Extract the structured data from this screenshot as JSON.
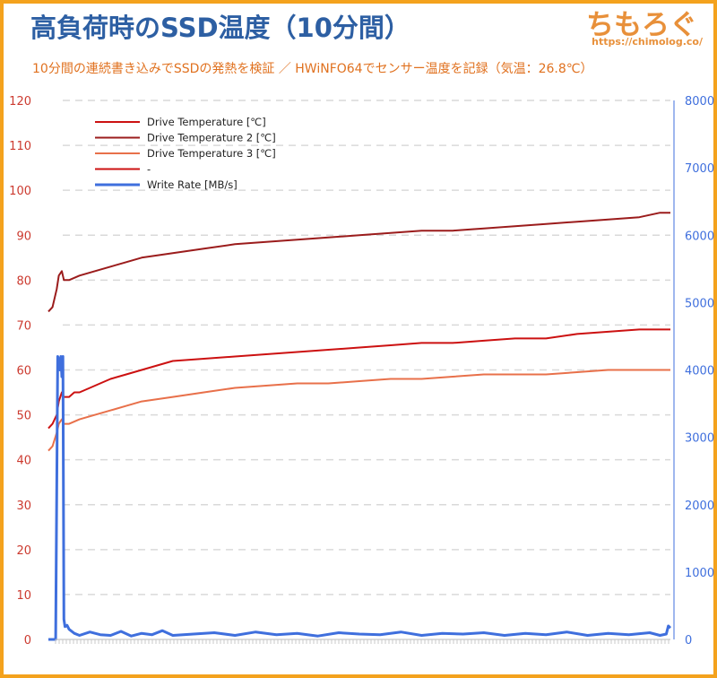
{
  "header": {
    "title": "高負荷時のSSD温度（10分間）",
    "subtitle": "10分間の連続書き込みでSSDの発熱を検証 ／ HWiNFO64でセンサー温度を記録（気温：26.8℃）"
  },
  "branding": {
    "logo_text": "ちもろぐ",
    "url": "https://chimolog.co/"
  },
  "colors": {
    "frame": "#f4a21d",
    "left_axis": "#cc3a2f",
    "right_axis": "#3f6fdd",
    "grid": "#d9d9d9"
  },
  "chart_data": {
    "type": "line",
    "ylim_left": [
      0,
      120
    ],
    "yticks_left": [
      "0",
      "10",
      "20",
      "30",
      "40",
      "50",
      "60",
      "70",
      "80",
      "90",
      "100",
      "110",
      "120"
    ],
    "ylim_right": [
      0,
      8000
    ],
    "yticks_right": [
      "0",
      "1000",
      "2000",
      "3000",
      "4000",
      "5000",
      "6000",
      "7000",
      "8000"
    ],
    "x_range": [
      0,
      600
    ],
    "xlabel": "",
    "grid": "horizontal dashed",
    "legend_position": "top-left",
    "series": [
      {
        "name": "Drive Temperature [℃]",
        "color": "#cc1111",
        "axis": "left",
        "x": [
          0,
          4,
          8,
          10,
          13,
          15,
          20,
          25,
          30,
          40,
          50,
          60,
          75,
          90,
          105,
          120,
          150,
          180,
          210,
          240,
          270,
          300,
          330,
          360,
          390,
          420,
          450,
          480,
          510,
          540,
          570,
          590,
          600
        ],
        "values": [
          47,
          48,
          50,
          53,
          55,
          54,
          54,
          55,
          55,
          56,
          57,
          58,
          59,
          60,
          61,
          62,
          62.5,
          63,
          63.5,
          64,
          64.5,
          65,
          65.5,
          66,
          66,
          66.5,
          67,
          67,
          68,
          68.5,
          69,
          69,
          69
        ]
      },
      {
        "name": "Drive Temperature 2 [℃]",
        "color": "#9b1c1c",
        "axis": "left",
        "x": [
          0,
          4,
          8,
          10,
          13,
          15,
          20,
          30,
          45,
          60,
          75,
          90,
          120,
          150,
          180,
          210,
          240,
          270,
          300,
          330,
          360,
          390,
          420,
          450,
          480,
          510,
          540,
          570,
          590,
          600
        ],
        "values": [
          73,
          74,
          78,
          81,
          82,
          80,
          80,
          81,
          82,
          83,
          84,
          85,
          86,
          87,
          88,
          88.5,
          89,
          89.5,
          90,
          90.5,
          91,
          91,
          91.5,
          92,
          92.5,
          93,
          93.5,
          94,
          95,
          95
        ]
      },
      {
        "name": "Drive Temperature 3 [℃]",
        "color": "#e8704a",
        "axis": "left",
        "x": [
          0,
          4,
          8,
          10,
          13,
          15,
          20,
          30,
          45,
          60,
          75,
          90,
          120,
          150,
          180,
          210,
          240,
          270,
          300,
          330,
          360,
          390,
          420,
          450,
          480,
          510,
          540,
          570,
          590,
          600
        ],
        "values": [
          42,
          43,
          46,
          48,
          49,
          48,
          48,
          49,
          50,
          51,
          52,
          53,
          54,
          55,
          56,
          56.5,
          57,
          57,
          57.5,
          58,
          58,
          58.5,
          59,
          59,
          59,
          59.5,
          60,
          60,
          60,
          60
        ]
      },
      {
        "name": "-",
        "color": "#cc1111",
        "axis": "left",
        "x": [],
        "values": []
      },
      {
        "name": "Write Rate [MB/s]",
        "color": "#3f6fdd",
        "axis": "right",
        "x": [
          0,
          2,
          4,
          6,
          7,
          8,
          9,
          10,
          11,
          12,
          13,
          14,
          15,
          16,
          18,
          20,
          25,
          30,
          40,
          50,
          60,
          70,
          80,
          90,
          100,
          110,
          120,
          140,
          160,
          180,
          200,
          220,
          240,
          260,
          280,
          300,
          320,
          340,
          360,
          380,
          400,
          420,
          440,
          460,
          480,
          500,
          520,
          540,
          560,
          580,
          590,
          596,
          598,
          600
        ],
        "values": [
          0,
          0,
          0,
          0,
          0,
          2200,
          4200,
          4150,
          4000,
          4200,
          3900,
          4200,
          300,
          190,
          210,
          150,
          90,
          60,
          110,
          70,
          60,
          120,
          50,
          90,
          70,
          130,
          60,
          80,
          100,
          60,
          110,
          70,
          90,
          50,
          100,
          80,
          70,
          110,
          60,
          90,
          80,
          100,
          60,
          90,
          70,
          110,
          60,
          90,
          70,
          100,
          60,
          80,
          200,
          170
        ]
      }
    ]
  }
}
